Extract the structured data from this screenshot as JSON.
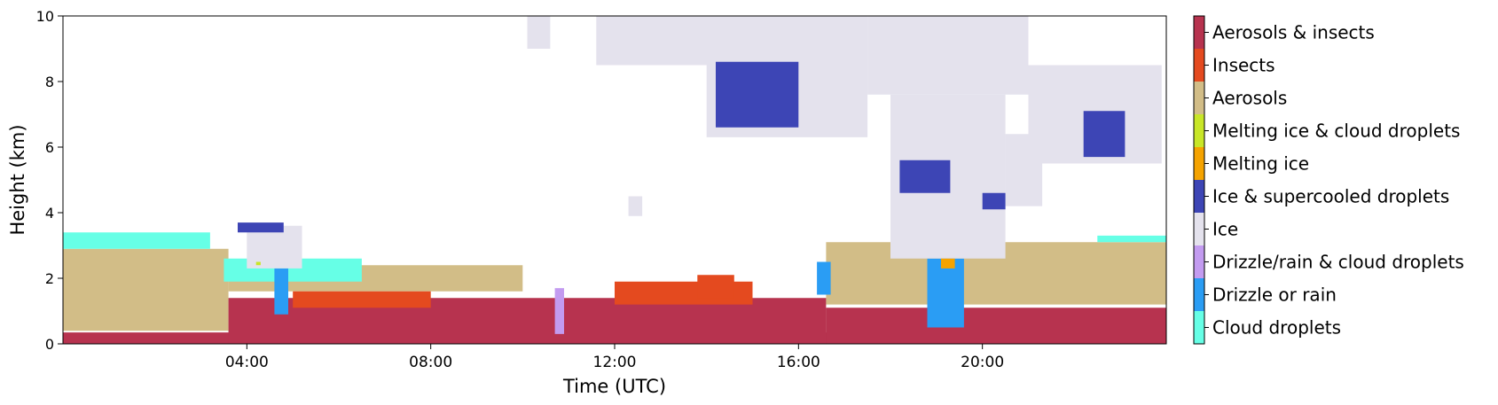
{
  "chart_data": {
    "type": "heatmap",
    "title": "",
    "xlabel": "Time (UTC)",
    "ylabel": "Height (km)",
    "xlim_hours": [
      0,
      24
    ],
    "ylim": [
      0,
      10
    ],
    "x_ticks": [
      {
        "value": 4,
        "label": "04:00"
      },
      {
        "value": 8,
        "label": "08:00"
      },
      {
        "value": 12,
        "label": "12:00"
      },
      {
        "value": 16,
        "label": "16:00"
      },
      {
        "value": 20,
        "label": "20:00"
      }
    ],
    "y_ticks": [
      {
        "value": 0,
        "label": "0"
      },
      {
        "value": 2,
        "label": "2"
      },
      {
        "value": 4,
        "label": "4"
      },
      {
        "value": 6,
        "label": "6"
      },
      {
        "value": 8,
        "label": "8"
      },
      {
        "value": 10,
        "label": "10"
      }
    ],
    "grid": false,
    "legend": "colorbar-right",
    "classes": [
      {
        "name": "Cloud droplets",
        "color": "#66ffe6"
      },
      {
        "name": "Drizzle or rain",
        "color": "#2a9df4"
      },
      {
        "name": "Drizzle/rain & cloud droplets",
        "color": "#c39bf0"
      },
      {
        "name": "Ice",
        "color": "#e4e2ed"
      },
      {
        "name": "Ice & supercooled droplets",
        "color": "#3d45b5"
      },
      {
        "name": "Melting ice",
        "color": "#f5a300"
      },
      {
        "name": "Melting ice & cloud droplets",
        "color": "#c8e627"
      },
      {
        "name": "Aerosols",
        "color": "#d2bd87"
      },
      {
        "name": "Insects",
        "color": "#e44a1f"
      },
      {
        "name": "Aerosols & insects",
        "color": "#b7334f"
      }
    ],
    "regions": [
      {
        "class": "Aerosols",
        "x": [
          0,
          3.6,
          3.6,
          0
        ],
        "y": [
          0.4,
          0.4,
          2.9,
          2.9
        ]
      },
      {
        "class": "Aerosols",
        "x": [
          3.6,
          10,
          10,
          3.6
        ],
        "y": [
          1.6,
          1.6,
          2.4,
          2.4
        ]
      },
      {
        "class": "Aerosols",
        "x": [
          16.6,
          24,
          24,
          16.6
        ],
        "y": [
          1.2,
          1.2,
          3.1,
          3.1
        ]
      },
      {
        "class": "Aerosols & insects",
        "x": [
          0,
          24,
          24,
          0
        ],
        "y": [
          0.0,
          0.0,
          0.35,
          0.35
        ]
      },
      {
        "class": "Aerosols & insects",
        "x": [
          3.6,
          16.6,
          16.6,
          3.6
        ],
        "y": [
          0.0,
          0.0,
          1.4,
          1.4
        ]
      },
      {
        "class": "Aerosols & insects",
        "x": [
          16.6,
          24,
          24,
          16.6
        ],
        "y": [
          0.0,
          0.0,
          1.1,
          1.1
        ]
      },
      {
        "class": "Insects",
        "x": [
          5,
          8,
          8,
          5
        ],
        "y": [
          1.1,
          1.1,
          1.6,
          1.6
        ]
      },
      {
        "class": "Insects",
        "x": [
          12,
          15,
          15,
          12
        ],
        "y": [
          1.2,
          1.2,
          1.9,
          1.9
        ]
      },
      {
        "class": "Insects",
        "x": [
          13.8,
          14.6,
          14.6,
          13.8
        ],
        "y": [
          1.4,
          1.4,
          2.1,
          2.1
        ]
      },
      {
        "class": "Cloud droplets",
        "x": [
          0,
          3.2,
          3.2,
          0
        ],
        "y": [
          2.9,
          2.9,
          3.4,
          3.4
        ]
      },
      {
        "class": "Cloud droplets",
        "x": [
          3.5,
          6.5,
          6.5,
          3.5
        ],
        "y": [
          1.9,
          1.9,
          2.6,
          2.6
        ]
      },
      {
        "class": "Cloud droplets",
        "x": [
          22.5,
          24,
          24,
          22.5
        ],
        "y": [
          3.1,
          3.1,
          3.3,
          3.3
        ]
      },
      {
        "class": "Drizzle or rain",
        "x": [
          4.6,
          4.9,
          4.9,
          4.6
        ],
        "y": [
          0.9,
          0.9,
          2.3,
          2.3
        ]
      },
      {
        "class": "Drizzle or rain",
        "x": [
          16.4,
          16.7,
          16.7,
          16.4
        ],
        "y": [
          1.5,
          1.5,
          2.5,
          2.5
        ]
      },
      {
        "class": "Drizzle or rain",
        "x": [
          18.8,
          19.6,
          19.6,
          18.8
        ],
        "y": [
          0.5,
          0.5,
          2.6,
          2.6
        ]
      },
      {
        "class": "Drizzle/rain & cloud droplets",
        "x": [
          10.7,
          10.9,
          10.9,
          10.7
        ],
        "y": [
          0.3,
          0.3,
          1.7,
          1.7
        ]
      },
      {
        "class": "Ice",
        "x": [
          10.1,
          10.6,
          10.6,
          10.1
        ],
        "y": [
          9.0,
          9.0,
          10,
          10
        ]
      },
      {
        "class": "Ice",
        "x": [
          11.6,
          15,
          15,
          11.6
        ],
        "y": [
          8.5,
          8.5,
          10,
          10
        ]
      },
      {
        "class": "Ice",
        "x": [
          14,
          17.5,
          17.5,
          14
        ],
        "y": [
          6.3,
          6.3,
          10,
          10
        ]
      },
      {
        "class": "Ice",
        "x": [
          17.5,
          21,
          21,
          17.5
        ],
        "y": [
          7.6,
          7.6,
          10,
          10
        ]
      },
      {
        "class": "Ice",
        "x": [
          18,
          20.5,
          20.5,
          18
        ],
        "y": [
          2.6,
          2.6,
          7.6,
          7.6
        ]
      },
      {
        "class": "Ice",
        "x": [
          20.5,
          21.3,
          21.3,
          20.5
        ],
        "y": [
          4.2,
          4.2,
          6.4,
          6.4
        ]
      },
      {
        "class": "Ice",
        "x": [
          21,
          23.9,
          23.9,
          21
        ],
        "y": [
          5.5,
          5.5,
          8.5,
          8.5
        ]
      },
      {
        "class": "Ice",
        "x": [
          4,
          5.2,
          5.2,
          4
        ],
        "y": [
          2.3,
          2.3,
          3.6,
          3.6
        ]
      },
      {
        "class": "Ice",
        "x": [
          12.3,
          12.6,
          12.6,
          12.3
        ],
        "y": [
          3.9,
          3.9,
          4.5,
          4.5
        ]
      },
      {
        "class": "Ice & supercooled droplets",
        "x": [
          14.2,
          16,
          16,
          14.2
        ],
        "y": [
          6.6,
          6.6,
          8.6,
          8.6
        ]
      },
      {
        "class": "Ice & supercooled droplets",
        "x": [
          18.2,
          19.3,
          19.3,
          18.2
        ],
        "y": [
          4.6,
          4.6,
          5.6,
          5.6
        ]
      },
      {
        "class": "Ice & supercooled droplets",
        "x": [
          20.0,
          20.5,
          20.5,
          20.0
        ],
        "y": [
          4.1,
          4.1,
          4.6,
          4.6
        ]
      },
      {
        "class": "Ice & supercooled droplets",
        "x": [
          22.2,
          23.1,
          23.1,
          22.2
        ],
        "y": [
          5.7,
          5.7,
          7.1,
          7.1
        ]
      },
      {
        "class": "Ice & supercooled droplets",
        "x": [
          3.8,
          4.8,
          4.8,
          3.8
        ],
        "y": [
          3.4,
          3.4,
          3.7,
          3.7
        ]
      },
      {
        "class": "Melting ice",
        "x": [
          19.1,
          19.4,
          19.4,
          19.1
        ],
        "y": [
          2.3,
          2.3,
          2.6,
          2.6
        ]
      },
      {
        "class": "Melting ice & cloud droplets",
        "x": [
          4.2,
          4.3,
          4.3,
          4.2
        ],
        "y": [
          2.4,
          2.4,
          2.5,
          2.5
        ]
      }
    ]
  }
}
